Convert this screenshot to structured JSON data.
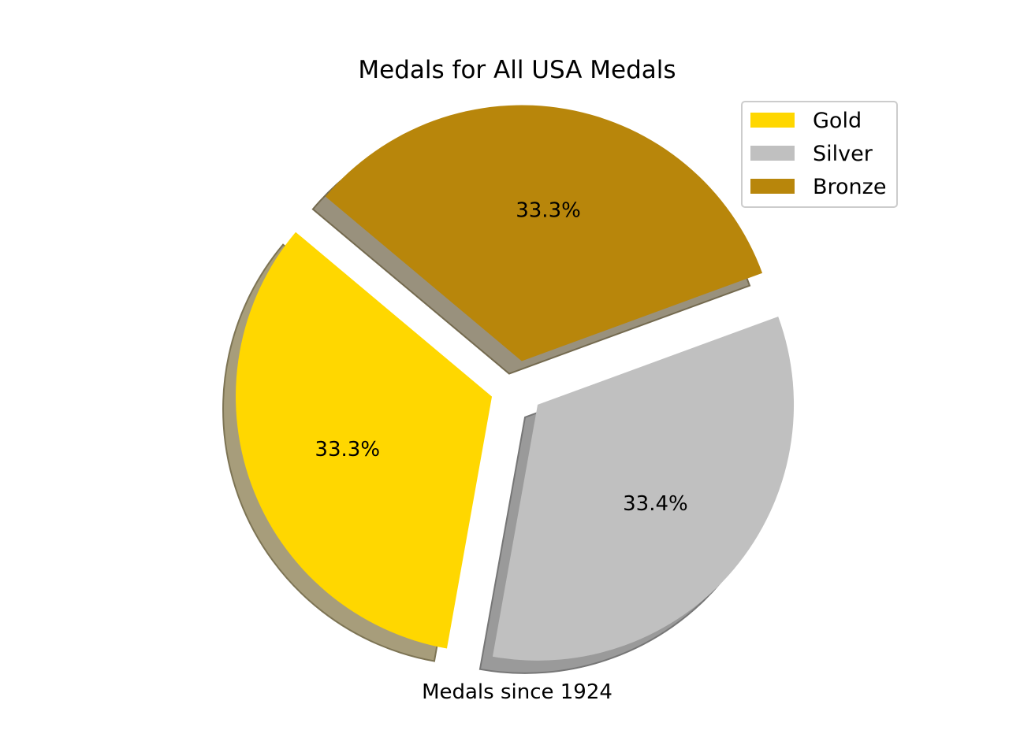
{
  "chart_data": {
    "type": "pie",
    "title": "Medals for All USA Medals",
    "xlabel": "Medals since 1924",
    "categories": [
      "Gold",
      "Silver",
      "Bronze"
    ],
    "values": [
      33.3,
      33.4,
      33.3
    ],
    "labels": [
      "33.3%",
      "33.4%",
      "33.3%"
    ],
    "colors": [
      "#FFD700",
      "#C0C0C0",
      "#B8860B"
    ],
    "explode": true,
    "shadow": true,
    "legend": {
      "placement": "top-right",
      "entries": [
        "Gold",
        "Silver",
        "Bronze"
      ]
    }
  }
}
